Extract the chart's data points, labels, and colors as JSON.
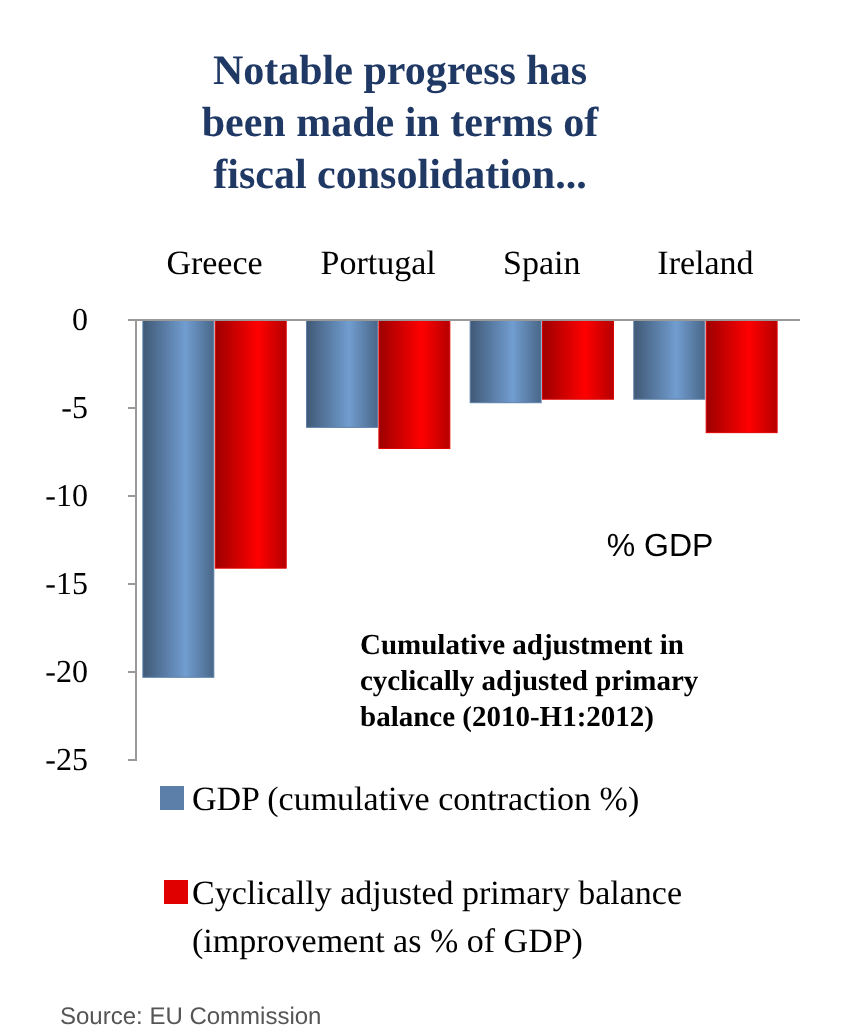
{
  "chart_data": {
    "type": "bar",
    "title": "Notable progress has been made in terms of fiscal consolidation...",
    "categories": [
      "Greece",
      "Portugal",
      "Spain",
      "Ireland"
    ],
    "series": [
      {
        "name": "GDP (cumulative contraction %)",
        "color": "#5b7fa8",
        "values": [
          -20.3,
          -6.1,
          -4.7,
          -4.5
        ]
      },
      {
        "name": "Cyclically adjusted primary  balance (improvement as % of GDP)",
        "color": "#e00000",
        "values": [
          -14.1,
          -7.3,
          -4.5,
          -6.4
        ]
      }
    ],
    "ylim": [
      -25,
      0
    ],
    "yticks": [
      -25,
      -20,
      -15,
      -10,
      -5,
      0
    ],
    "grid": false,
    "legend": "bottom",
    "annotations": [
      "% GDP",
      "Cumulative adjustment in cyclically adjusted primary balance (2010-H1:2012)",
      "Source: EU Commission"
    ]
  }
}
